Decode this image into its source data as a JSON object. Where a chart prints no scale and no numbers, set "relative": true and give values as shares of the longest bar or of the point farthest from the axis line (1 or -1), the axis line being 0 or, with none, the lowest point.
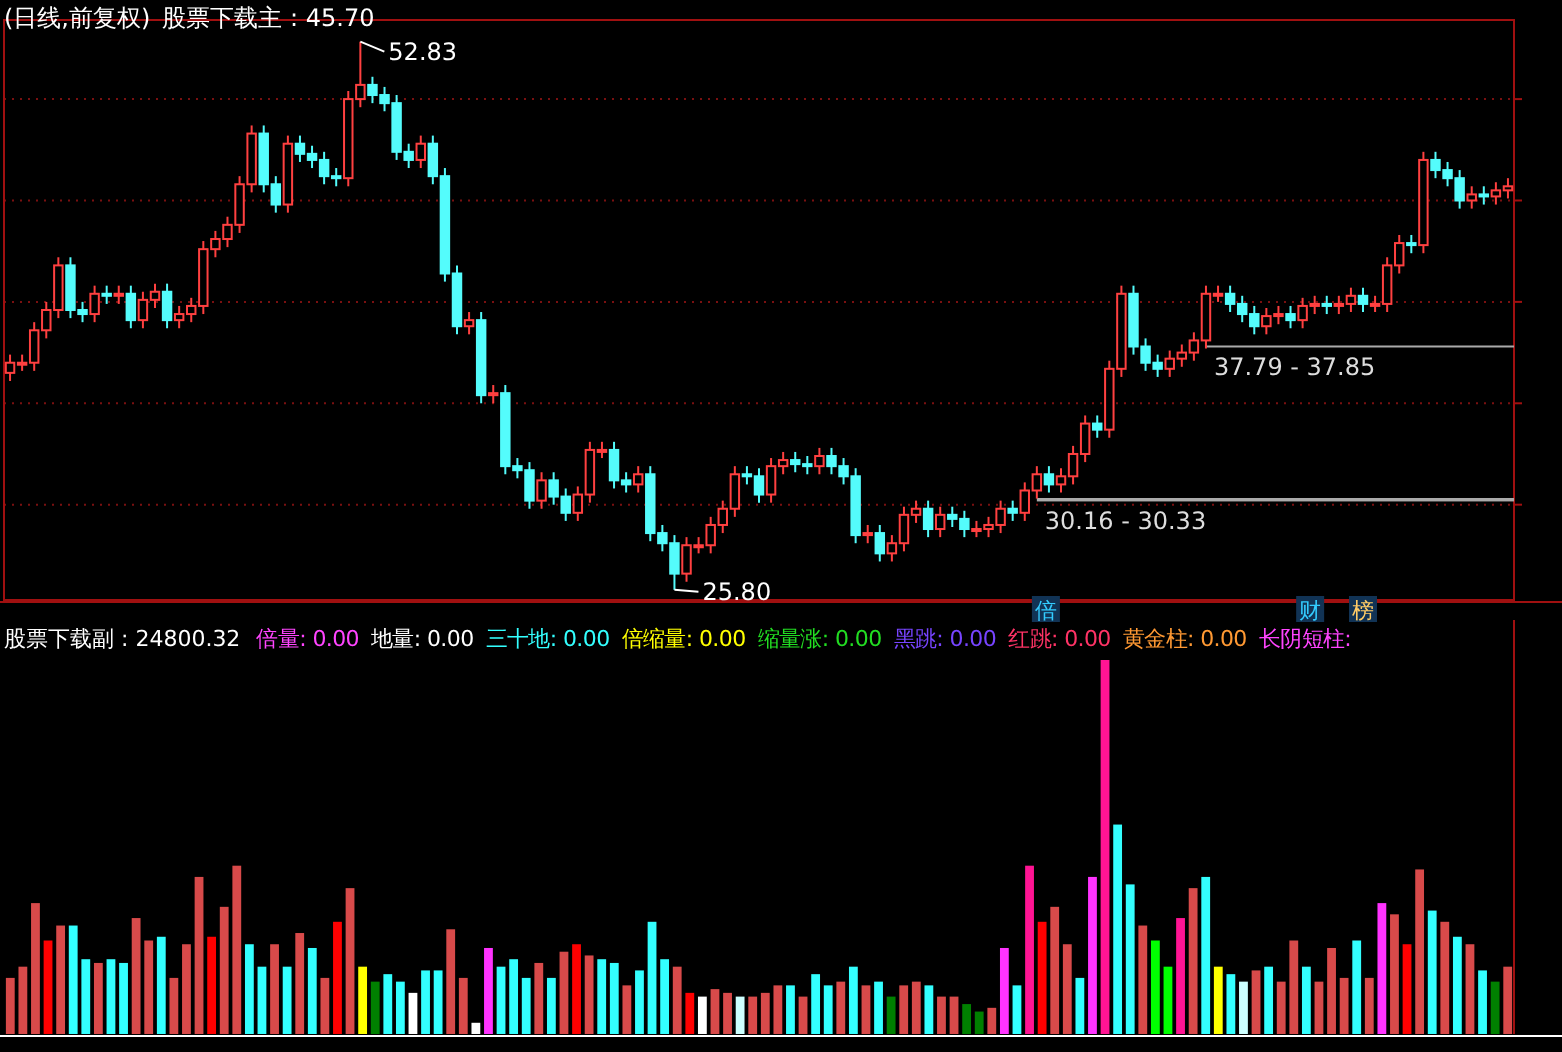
{
  "chart_data": [
    {
      "type": "candlestick",
      "title": "(日线,前复权)",
      "annotations": [
        "股票下载主 : 45.70",
        "52.83",
        "25.80",
        "倍",
        "财",
        "榜"
      ],
      "categories": [
        null,
        null,
        null,
        null,
        null,
        null,
        null,
        null,
        null,
        null,
        null,
        null,
        null,
        null,
        null,
        null,
        null,
        null,
        null,
        null,
        null,
        null,
        null,
        null,
        null,
        null,
        null,
        null,
        null,
        null,
        null,
        null,
        null,
        null,
        null,
        null,
        null,
        null,
        null,
        null,
        null,
        null,
        null,
        null,
        null,
        null,
        null,
        null,
        null,
        null,
        null,
        null,
        null,
        null,
        null,
        null,
        null,
        null,
        null,
        null,
        null,
        null,
        null,
        null,
        null,
        null,
        null,
        null,
        null,
        null,
        null,
        null,
        null,
        null,
        null,
        null,
        null,
        null,
        null,
        null,
        null,
        null,
        null,
        null,
        null,
        null,
        null,
        null,
        null,
        null,
        null,
        null,
        null,
        null,
        null,
        null,
        null,
        null,
        null,
        null,
        null,
        null,
        null,
        null,
        null,
        null,
        null,
        null,
        null,
        null,
        null,
        null,
        null,
        null,
        null,
        null,
        null,
        null,
        null,
        null,
        null,
        null,
        null,
        null,
        null
      ],
      "ohlc": [
        [
          36.5,
          37.4,
          36.1,
          37.0
        ],
        [
          37.0,
          37.4,
          36.6,
          37.0
        ],
        [
          37.0,
          39.0,
          36.6,
          38.6
        ],
        [
          38.6,
          40.0,
          38.2,
          39.6
        ],
        [
          39.6,
          42.2,
          39.2,
          41.8
        ],
        [
          41.8,
          42.2,
          39.2,
          39.6
        ],
        [
          39.6,
          40.0,
          39.0,
          39.4
        ],
        [
          39.4,
          40.8,
          39.0,
          40.4
        ],
        [
          40.4,
          40.8,
          39.9,
          40.3
        ],
        [
          40.3,
          40.8,
          39.9,
          40.4
        ],
        [
          40.4,
          40.8,
          38.7,
          39.1
        ],
        [
          39.1,
          40.5,
          38.7,
          40.1
        ],
        [
          40.1,
          40.9,
          39.7,
          40.5
        ],
        [
          40.5,
          40.9,
          38.7,
          39.1
        ],
        [
          39.1,
          39.8,
          38.7,
          39.4
        ],
        [
          39.4,
          40.2,
          39.0,
          39.8
        ],
        [
          39.8,
          43.0,
          39.4,
          42.6
        ],
        [
          42.6,
          43.5,
          42.2,
          43.1
        ],
        [
          43.1,
          44.2,
          42.7,
          43.8
        ],
        [
          43.8,
          46.2,
          43.4,
          45.8
        ],
        [
          45.8,
          48.7,
          45.4,
          48.3
        ],
        [
          48.3,
          48.7,
          45.4,
          45.8
        ],
        [
          45.8,
          46.2,
          44.4,
          44.8
        ],
        [
          44.8,
          48.2,
          44.4,
          47.8
        ],
        [
          47.8,
          48.2,
          46.9,
          47.3
        ],
        [
          47.3,
          47.7,
          46.6,
          47.0
        ],
        [
          47.0,
          47.4,
          45.8,
          46.2
        ],
        [
          46.2,
          46.6,
          45.7,
          46.1
        ],
        [
          46.1,
          50.4,
          45.7,
          50.0
        ],
        [
          50.0,
          52.83,
          49.6,
          50.7
        ],
        [
          50.7,
          51.1,
          49.8,
          50.2
        ],
        [
          50.2,
          50.6,
          49.4,
          49.8
        ],
        [
          49.8,
          50.2,
          47.0,
          47.4
        ],
        [
          47.4,
          47.8,
          46.6,
          47.0
        ],
        [
          47.0,
          48.2,
          46.6,
          47.8
        ],
        [
          47.8,
          48.2,
          45.8,
          46.2
        ],
        [
          46.2,
          46.6,
          41.0,
          41.4
        ],
        [
          41.4,
          41.8,
          38.4,
          38.8
        ],
        [
          38.8,
          39.5,
          38.4,
          39.1
        ],
        [
          39.1,
          39.5,
          35.0,
          35.4
        ],
        [
          35.4,
          35.9,
          35.0,
          35.5
        ],
        [
          35.5,
          35.9,
          31.5,
          31.9
        ],
        [
          31.9,
          32.3,
          31.3,
          31.7
        ],
        [
          31.7,
          32.1,
          29.8,
          30.2
        ],
        [
          30.2,
          31.6,
          29.8,
          31.2
        ],
        [
          31.2,
          31.6,
          30.0,
          30.4
        ],
        [
          30.4,
          30.8,
          29.2,
          29.6
        ],
        [
          29.6,
          30.9,
          29.2,
          30.5
        ],
        [
          30.5,
          33.1,
          30.1,
          32.7
        ],
        [
          32.7,
          33.1,
          32.3,
          32.7
        ],
        [
          32.7,
          33.1,
          30.8,
          31.2
        ],
        [
          31.2,
          31.6,
          30.6,
          31.0
        ],
        [
          31.0,
          31.9,
          30.6,
          31.5
        ],
        [
          31.5,
          31.9,
          28.2,
          28.6
        ],
        [
          28.6,
          29.0,
          27.7,
          28.1
        ],
        [
          28.1,
          28.5,
          25.8,
          26.6
        ],
        [
          26.6,
          28.4,
          26.2,
          28.0
        ],
        [
          28.0,
          28.4,
          27.6,
          28.0
        ],
        [
          28.0,
          29.4,
          27.6,
          29.0
        ],
        [
          29.0,
          30.2,
          28.6,
          29.8
        ],
        [
          29.8,
          31.9,
          29.4,
          31.5
        ],
        [
          31.5,
          31.9,
          31.0,
          31.4
        ],
        [
          31.4,
          31.8,
          30.1,
          30.5
        ],
        [
          30.5,
          32.3,
          30.1,
          31.9
        ],
        [
          31.9,
          32.6,
          31.5,
          32.2
        ],
        [
          32.2,
          32.6,
          31.6,
          32.0
        ],
        [
          32.0,
          32.4,
          31.5,
          31.9
        ],
        [
          31.9,
          32.8,
          31.5,
          32.4
        ],
        [
          32.4,
          32.8,
          31.5,
          31.9
        ],
        [
          31.9,
          32.3,
          31.0,
          31.4
        ],
        [
          31.4,
          31.8,
          28.1,
          28.5
        ],
        [
          28.5,
          29.0,
          28.1,
          28.6
        ],
        [
          28.6,
          29.0,
          27.2,
          27.6
        ],
        [
          27.6,
          28.5,
          27.2,
          28.1
        ],
        [
          28.1,
          29.9,
          27.7,
          29.5
        ],
        [
          29.5,
          30.2,
          29.1,
          29.8
        ],
        [
          29.8,
          30.2,
          28.4,
          28.8
        ],
        [
          28.8,
          29.9,
          28.4,
          29.5
        ],
        [
          29.5,
          29.9,
          28.9,
          29.3
        ],
        [
          29.3,
          29.7,
          28.4,
          28.8
        ],
        [
          28.8,
          29.2,
          28.4,
          28.8
        ],
        [
          28.8,
          29.4,
          28.4,
          29.0
        ],
        [
          29.0,
          30.2,
          28.6,
          29.8
        ],
        [
          29.8,
          30.2,
          29.2,
          29.6
        ],
        [
          29.6,
          31.1,
          29.2,
          30.7
        ],
        [
          30.7,
          31.9,
          30.3,
          31.5
        ],
        [
          31.5,
          31.9,
          30.6,
          31.0
        ],
        [
          31.0,
          31.8,
          30.6,
          31.4
        ],
        [
          31.4,
          32.9,
          31.0,
          32.5
        ],
        [
          32.5,
          34.4,
          32.1,
          34.0
        ],
        [
          34.0,
          34.4,
          33.3,
          33.7
        ],
        [
          33.7,
          37.1,
          33.3,
          36.7
        ],
        [
          36.7,
          40.8,
          36.3,
          40.4
        ],
        [
          40.4,
          40.8,
          37.4,
          37.8
        ],
        [
          37.8,
          38.2,
          36.6,
          37.0
        ],
        [
          37.0,
          37.4,
          36.3,
          36.7
        ],
        [
          36.7,
          37.6,
          36.3,
          37.2
        ],
        [
          37.2,
          37.9,
          36.8,
          37.5
        ],
        [
          37.5,
          38.5,
          37.1,
          38.1
        ],
        [
          38.1,
          40.8,
          37.7,
          40.4
        ],
        [
          40.4,
          40.8,
          40.0,
          40.4
        ],
        [
          40.4,
          40.8,
          39.5,
          39.9
        ],
        [
          39.9,
          40.3,
          39.0,
          39.4
        ],
        [
          39.4,
          39.8,
          38.4,
          38.8
        ],
        [
          38.8,
          39.7,
          38.4,
          39.3
        ],
        [
          39.3,
          39.8,
          38.9,
          39.4
        ],
        [
          39.4,
          39.8,
          38.7,
          39.1
        ],
        [
          39.1,
          40.2,
          38.7,
          39.8
        ],
        [
          39.8,
          40.3,
          39.4,
          39.9
        ],
        [
          39.9,
          40.3,
          39.4,
          39.8
        ],
        [
          39.8,
          40.3,
          39.4,
          39.9
        ],
        [
          39.9,
          40.7,
          39.5,
          40.3
        ],
        [
          40.3,
          40.7,
          39.5,
          39.9
        ],
        [
          39.9,
          40.3,
          39.5,
          39.9
        ],
        [
          39.9,
          42.2,
          39.5,
          41.8
        ],
        [
          41.8,
          43.3,
          41.4,
          42.9
        ],
        [
          42.9,
          43.3,
          42.4,
          42.8
        ],
        [
          42.8,
          47.4,
          42.4,
          47.0
        ],
        [
          47.0,
          47.4,
          46.1,
          46.5
        ],
        [
          46.5,
          46.9,
          45.7,
          46.1
        ],
        [
          46.1,
          46.5,
          44.6,
          45.0
        ],
        [
          45.0,
          45.7,
          44.6,
          45.3
        ],
        [
          45.3,
          45.7,
          44.8,
          45.2
        ],
        [
          45.2,
          45.9,
          44.8,
          45.5
        ],
        [
          45.5,
          46.1,
          45.1,
          45.7
        ]
      ],
      "ylim": [
        25.3,
        53.9
      ],
      "yticks": [
        {
          "value": 30,
          "label": null
        },
        {
          "value": 35,
          "label": null
        },
        {
          "value": 40,
          "label": null
        },
        {
          "value": 45,
          "label": null
        },
        {
          "value": 50,
          "label": null
        }
      ],
      "grid": "y",
      "bands": [
        {
          "axis": "y",
          "from": 37.79,
          "to": 37.85,
          "label": "37.79 - 37.85",
          "color": "#aaaaaa"
        },
        {
          "axis": "y",
          "from": 30.16,
          "to": 30.33,
          "label": "30.16 - 30.33",
          "color": "#aaaaaa"
        }
      ]
    },
    {
      "type": "bar",
      "relative": true,
      "title": "股票下载副 : 24800.32",
      "annotations": [
        "倍量: 0.00",
        "地量: 0.00",
        "三十地: 0.00",
        "倍缩量: 0.00",
        "缩量涨: 0.00",
        "黑跳: 0.00",
        "红跳: 0.00",
        "黄金柱: 0.00",
        "长阴短柱:"
      ],
      "categories": [
        null,
        null,
        null,
        null,
        null,
        null,
        null,
        null,
        null,
        null,
        null,
        null,
        null,
        null,
        null,
        null,
        null,
        null,
        null,
        null,
        null,
        null,
        null,
        null,
        null,
        null,
        null,
        null,
        null,
        null,
        null,
        null,
        null,
        null,
        null,
        null,
        null,
        null,
        null,
        null,
        null,
        null,
        null,
        null,
        null,
        null,
        null,
        null,
        null,
        null,
        null,
        null,
        null,
        null,
        null,
        null,
        null,
        null,
        null,
        null,
        null,
        null,
        null,
        null,
        null,
        null,
        null,
        null,
        null,
        null,
        null,
        null,
        null,
        null,
        null,
        null,
        null,
        null,
        null,
        null,
        null,
        null,
        null,
        null,
        null,
        null,
        null,
        null,
        null,
        null,
        null,
        null,
        null,
        null,
        null,
        null,
        null,
        null,
        null,
        null,
        null,
        null,
        null,
        null,
        null,
        null,
        null,
        null,
        null,
        null,
        null,
        null,
        null,
        null,
        null,
        null,
        null,
        null,
        null,
        null
      ],
      "values": [
        0.15,
        0.18,
        0.35,
        0.25,
        0.29,
        0.29,
        0.2,
        0.19,
        0.2,
        0.19,
        0.31,
        0.25,
        0.26,
        0.15,
        0.24,
        0.42,
        0.26,
        0.34,
        0.45,
        0.24,
        0.18,
        0.24,
        0.18,
        0.27,
        0.23,
        0.15,
        0.3,
        0.39,
        0.18,
        0.14,
        0.16,
        0.14,
        0.11,
        0.17,
        0.17,
        0.28,
        0.15,
        0.03,
        0.23,
        0.18,
        0.2,
        0.15,
        0.19,
        0.15,
        0.22,
        0.24,
        0.21,
        0.2,
        0.19,
        0.13,
        0.17,
        0.3,
        0.2,
        0.18,
        0.11,
        0.1,
        0.12,
        0.11,
        0.1,
        0.1,
        0.11,
        0.13,
        0.13,
        0.1,
        0.16,
        0.13,
        0.14,
        0.18,
        0.13,
        0.14,
        0.1,
        0.13,
        0.14,
        0.13,
        0.1,
        0.1,
        0.08,
        0.06,
        0.07,
        0.23,
        0.13,
        0.45,
        0.3,
        0.34,
        0.24,
        0.15,
        0.42,
        1,
        0.56,
        0.4,
        0.29,
        0.25,
        0.18,
        0.31,
        0.39,
        0.42,
        0.18,
        0.16,
        0.14,
        0.17,
        0.18,
        0.14,
        0.25,
        0.18,
        0.14,
        0.23,
        0.15,
        0.25,
        0.15,
        0.35,
        0.32,
        0.24,
        0.44,
        0.33,
        0.3,
        0.26,
        0.24,
        0.17,
        0.14,
        0.18
      ],
      "colors": [
        "#d84a4a",
        "#d84a4a",
        "#d84a4a",
        "#ff0000",
        "#d84a4a",
        "#33ffff",
        "#33ffff",
        "#d84a4a",
        "#33ffff",
        "#33ffff",
        "#d84a4a",
        "#d84a4a",
        "#33ffff",
        "#d84a4a",
        "#d84a4a",
        "#d84a4a",
        "#ff0000",
        "#d84a4a",
        "#d84a4a",
        "#33ffff",
        "#33ffff",
        "#d84a4a",
        "#33ffff",
        "#d84a4a",
        "#33ffff",
        "#d84a4a",
        "#ff0000",
        "#d84a4a",
        "#ffff00",
        "#008000",
        "#33ffff",
        "#33ffff",
        "#ffffff",
        "#33ffff",
        "#33ffff",
        "#d84a4a",
        "#d84a4a",
        "#ffffff",
        "#ff33ff",
        "#33ffff",
        "#33ffff",
        "#33ffff",
        "#d84a4a",
        "#33ffff",
        "#d84a4a",
        "#ff0000",
        "#d84a4a",
        "#33ffff",
        "#33ffff",
        "#d84a4a",
        "#33ffff",
        "#33ffff",
        "#33ffff",
        "#d84a4a",
        "#ff0000",
        "#ffffff",
        "#d84a4a",
        "#d84a4a",
        "#ccffff",
        "#d84a4a",
        "#d84a4a",
        "#d84a4a",
        "#33ffff",
        "#d84a4a",
        "#33ffff",
        "#33ffff",
        "#d84a4a",
        "#33ffff",
        "#d84a4a",
        "#33ffff",
        "#008000",
        "#d84a4a",
        "#d84a4a",
        "#33ffff",
        "#d84a4a",
        "#d84a4a",
        "#008000",
        "#008000",
        "#d84a4a",
        "#ff33ff",
        "#33ffff",
        "#ff1493",
        "#ff0000",
        "#d84a4a",
        "#d84a4a",
        "#33ffff",
        "#ff33ff",
        "#ff1493",
        "#33ffff",
        "#33ffff",
        "#d84a4a",
        "#00ff00",
        "#00ff00",
        "#ff1493",
        "#d84a4a",
        "#33ffff",
        "#ffff00",
        "#33ffff",
        "#ccffff",
        "#d84a4a",
        "#33ffff",
        "#d84a4a",
        "#d84a4a",
        "#33ffff",
        "#d84a4a",
        "#d84a4a",
        "#d84a4a",
        "#33ffff",
        "#d84a4a",
        "#ff33ff",
        "#d84a4a",
        "#ff0000",
        "#d84a4a",
        "#33ffff",
        "#d84a4a",
        "#33ffff",
        "#d84a4a",
        "#33ffff",
        "#008000",
        "#d84a4a"
      ]
    }
  ]
}
